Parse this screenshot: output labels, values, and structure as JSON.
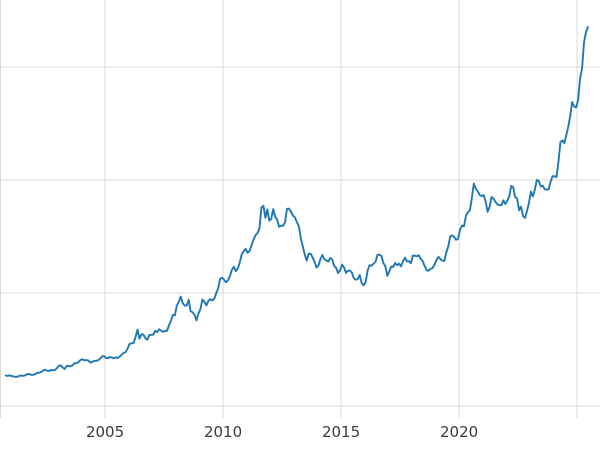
{
  "chart_data": {
    "type": "line",
    "title": "",
    "xlabel": "",
    "ylabel": "",
    "legend": "none",
    "grid": true,
    "background": "#ffffff",
    "line_color": "#1f77b4",
    "line_width": 1.9,
    "grid_color": "#d9d9d9",
    "tick_label_color": "#3b3b3b",
    "xlim": [
      2000.55,
      2025.97
    ],
    "ylim": [
      -106,
      3593
    ],
    "x_gridline_years": [
      2005,
      2010,
      2015,
      2020,
      2025
    ],
    "y_gridline_values": [
      0,
      1000,
      2000,
      3000
    ],
    "x_ticks": [
      {
        "year": 2005,
        "label": "2005"
      },
      {
        "year": 2010,
        "label": "2010"
      },
      {
        "year": 2015,
        "label": "2015"
      },
      {
        "year": 2020,
        "label": "2020"
      }
    ],
    "series": [
      {
        "name": "main-series",
        "x_start": 2000.792,
        "x_step_years": 0.0833333,
        "values": [
          270,
          266,
          272,
          265,
          262,
          258,
          260,
          268,
          270,
          267,
          272,
          283,
          283,
          276,
          276,
          281,
          295,
          294,
          302,
          314,
          321,
          313,
          310,
          319,
          316,
          319,
          333,
          357,
          359,
          340,
          328,
          355,
          356,
          351,
          360,
          379,
          379,
          389,
          407,
          414,
          405,
          407,
          403,
          384,
          392,
          398,
          400,
          405,
          420,
          439,
          442,
          424,
          423,
          434,
          429,
          422,
          431,
          425,
          437,
          456,
          470,
          477,
          510,
          550,
          555,
          557,
          611,
          676,
          596,
          634,
          632,
          599,
          586,
          628,
          630,
          631,
          665,
          655,
          679,
          667,
          656,
          665,
          665,
          713,
          755,
          806,
          803,
          890,
          922,
          968,
          910,
          889,
          889,
          940,
          839,
          829,
          807,
          757,
          820,
          858,
          943,
          924,
          890,
          929,
          946,
          934,
          949,
          997,
          1043,
          1127,
          1135,
          1118,
          1095,
          1113,
          1149,
          1205,
          1233,
          1193,
          1216,
          1271,
          1342,
          1370,
          1391,
          1356,
          1373,
          1424,
          1474,
          1512,
          1529,
          1573,
          1756,
          1772,
          1666,
          1739,
          1640,
          1656,
          1743,
          1674,
          1650,
          1586,
          1597,
          1594,
          1626,
          1745,
          1747,
          1721,
          1685,
          1671,
          1628,
          1593,
          1487,
          1414,
          1343,
          1287,
          1347,
          1348,
          1316,
          1276,
          1225,
          1244,
          1301,
          1336,
          1299,
          1288,
          1279,
          1311,
          1296,
          1238,
          1223,
          1176,
          1201,
          1251,
          1227,
          1178,
          1198,
          1198,
          1181,
          1130,
          1117,
          1125,
          1159,
          1086,
          1068,
          1097,
          1200,
          1246,
          1242,
          1260,
          1276,
          1337,
          1340,
          1327,
          1266,
          1238,
          1152,
          1192,
          1234,
          1231,
          1266,
          1246,
          1260,
          1236,
          1283,
          1314,
          1280,
          1282,
          1264,
          1331,
          1330,
          1325,
          1334,
          1303,
          1282,
          1238,
          1201,
          1198,
          1215,
          1221,
          1250,
          1292,
          1320,
          1301,
          1286,
          1284,
          1359,
          1413,
          1500,
          1511,
          1495,
          1471,
          1480,
          1561,
          1597,
          1591,
          1683,
          1716,
          1732,
          1843,
          1969,
          1922,
          1900,
          1866,
          1858,
          1867,
          1808,
          1718,
          1762,
          1850,
          1835,
          1807,
          1784,
          1777,
          1777,
          1820,
          1787,
          1817,
          1856,
          1948,
          1937,
          1850,
          1836,
          1732,
          1765,
          1681,
          1664,
          1725,
          1797,
          1898,
          1855,
          1913,
          2000,
          1992,
          1943,
          1951,
          1918,
          1916,
          1916,
          1984,
          2034,
          2034,
          2025,
          2160,
          2335,
          2351,
          2326,
          2398,
          2470,
          2568,
          2690,
          2651,
          2643,
          2708,
          2897,
          2983,
          3218,
          3309,
          3353
        ]
      }
    ]
  }
}
